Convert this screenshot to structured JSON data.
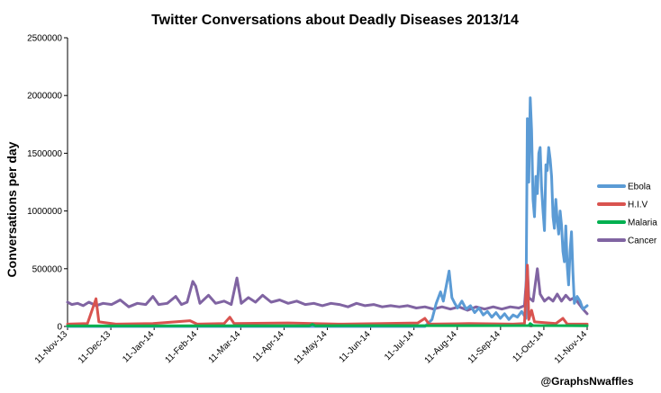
{
  "chart_data": {
    "type": "line",
    "title": "Twitter Conversations about Deadly Diseases 2013/14",
    "xlabel": "",
    "ylabel": "Conversations per day",
    "ylim": [
      0,
      2500000
    ],
    "yticks": [
      "0",
      "500000",
      "1000000",
      "1500000",
      "2000000",
      "2500000"
    ],
    "xlim": [
      "2013-11-11",
      "2014-11-11"
    ],
    "xticks": [
      "11-Nov-13",
      "11-Dec-13",
      "11-Jan-14",
      "11-Feb-14",
      "11-Mar-14",
      "11-Apr-14",
      "11-May-14",
      "11-Jun-14",
      "11-Jul-14",
      "11-Aug-14",
      "11-Sep-14",
      "11-Oct-14",
      "11-Nov-14"
    ],
    "grid": false,
    "legend": "right",
    "credit": "@GraphsNwaffles",
    "series": [
      {
        "name": "Ebola",
        "color": "#5b9bd5",
        "points": [
          [
            "2013-11-11",
            0
          ],
          [
            "2014-07-20",
            0
          ],
          [
            "2014-07-25",
            60000
          ],
          [
            "2014-07-28",
            200000
          ],
          [
            "2014-07-31",
            300000
          ],
          [
            "2014-08-02",
            220000
          ],
          [
            "2014-08-04",
            350000
          ],
          [
            "2014-08-06",
            480000
          ],
          [
            "2014-08-08",
            250000
          ],
          [
            "2014-08-10",
            200000
          ],
          [
            "2014-08-12",
            160000
          ],
          [
            "2014-08-15",
            220000
          ],
          [
            "2014-08-18",
            150000
          ],
          [
            "2014-08-21",
            180000
          ],
          [
            "2014-08-24",
            120000
          ],
          [
            "2014-08-27",
            160000
          ],
          [
            "2014-08-30",
            100000
          ],
          [
            "2014-09-02",
            130000
          ],
          [
            "2014-09-05",
            80000
          ],
          [
            "2014-09-08",
            120000
          ],
          [
            "2014-09-11",
            70000
          ],
          [
            "2014-09-14",
            110000
          ],
          [
            "2014-09-17",
            60000
          ],
          [
            "2014-09-20",
            100000
          ],
          [
            "2014-09-23",
            80000
          ],
          [
            "2014-09-26",
            130000
          ],
          [
            "2014-09-29",
            70000
          ],
          [
            "2014-09-30",
            1800000
          ],
          [
            "2014-10-01",
            1250000
          ],
          [
            "2014-10-02",
            1980000
          ],
          [
            "2014-10-03",
            1700000
          ],
          [
            "2014-10-04",
            1100000
          ],
          [
            "2014-10-05",
            950000
          ],
          [
            "2014-10-06",
            1300000
          ],
          [
            "2014-10-07",
            1150000
          ],
          [
            "2014-10-08",
            1500000
          ],
          [
            "2014-10-09",
            1550000
          ],
          [
            "2014-10-10",
            1200000
          ],
          [
            "2014-10-11",
            1000000
          ],
          [
            "2014-10-12",
            830000
          ],
          [
            "2014-10-13",
            1400000
          ],
          [
            "2014-10-14",
            1350000
          ],
          [
            "2014-10-15",
            1550000
          ],
          [
            "2014-10-16",
            1450000
          ],
          [
            "2014-10-17",
            1300000
          ],
          [
            "2014-10-18",
            950000
          ],
          [
            "2014-10-19",
            850000
          ],
          [
            "2014-10-20",
            1100000
          ],
          [
            "2014-10-21",
            920000
          ],
          [
            "2014-10-22",
            800000
          ],
          [
            "2014-10-23",
            1000000
          ],
          [
            "2014-10-24",
            880000
          ],
          [
            "2014-10-25",
            650000
          ],
          [
            "2014-10-26",
            560000
          ],
          [
            "2014-10-27",
            870000
          ],
          [
            "2014-10-28",
            520000
          ],
          [
            "2014-10-29",
            360000
          ],
          [
            "2014-10-30",
            650000
          ],
          [
            "2014-10-31",
            820000
          ],
          [
            "2014-11-01",
            470000
          ],
          [
            "2014-11-02",
            200000
          ],
          [
            "2014-11-04",
            260000
          ],
          [
            "2014-11-06",
            220000
          ],
          [
            "2014-11-08",
            150000
          ],
          [
            "2014-11-11",
            180000
          ]
        ]
      },
      {
        "name": "H.I.V",
        "color": "#d9534f",
        "points": [
          [
            "2013-11-11",
            20000
          ],
          [
            "2013-11-25",
            25000
          ],
          [
            "2013-12-01",
            240000
          ],
          [
            "2013-12-03",
            40000
          ],
          [
            "2013-12-15",
            20000
          ],
          [
            "2014-01-10",
            25000
          ],
          [
            "2014-02-05",
            50000
          ],
          [
            "2014-02-10",
            20000
          ],
          [
            "2014-03-01",
            25000
          ],
          [
            "2014-03-05",
            80000
          ],
          [
            "2014-03-08",
            25000
          ],
          [
            "2014-04-15",
            30000
          ],
          [
            "2014-05-20",
            20000
          ],
          [
            "2014-06-20",
            25000
          ],
          [
            "2014-07-15",
            30000
          ],
          [
            "2014-07-20",
            70000
          ],
          [
            "2014-07-23",
            20000
          ],
          [
            "2014-08-20",
            25000
          ],
          [
            "2014-09-20",
            20000
          ],
          [
            "2014-09-28",
            25000
          ],
          [
            "2014-09-30",
            530000
          ],
          [
            "2014-10-01",
            60000
          ],
          [
            "2014-10-03",
            140000
          ],
          [
            "2014-10-05",
            40000
          ],
          [
            "2014-10-20",
            25000
          ],
          [
            "2014-10-25",
            70000
          ],
          [
            "2014-10-28",
            20000
          ],
          [
            "2014-11-11",
            20000
          ]
        ]
      },
      {
        "name": "Malaria",
        "color": "#00b050",
        "points": [
          [
            "2013-11-11",
            5000
          ],
          [
            "2014-04-30",
            6000
          ],
          [
            "2014-05-02",
            18000
          ],
          [
            "2014-05-04",
            6000
          ],
          [
            "2014-10-01",
            8000
          ],
          [
            "2014-10-02",
            25000
          ],
          [
            "2014-10-04",
            8000
          ],
          [
            "2014-11-11",
            6000
          ]
        ]
      },
      {
        "name": "Cancer",
        "color": "#8064a2",
        "points": [
          [
            "2013-11-11",
            210000
          ],
          [
            "2013-11-14",
            190000
          ],
          [
            "2013-11-18",
            200000
          ],
          [
            "2013-11-22",
            180000
          ],
          [
            "2013-11-26",
            210000
          ],
          [
            "2013-12-01",
            180000
          ],
          [
            "2013-12-06",
            200000
          ],
          [
            "2013-12-12",
            190000
          ],
          [
            "2013-12-18",
            230000
          ],
          [
            "2013-12-24",
            170000
          ],
          [
            "2013-12-30",
            200000
          ],
          [
            "2014-01-05",
            190000
          ],
          [
            "2014-01-10",
            260000
          ],
          [
            "2014-01-14",
            190000
          ],
          [
            "2014-01-20",
            200000
          ],
          [
            "2014-01-26",
            260000
          ],
          [
            "2014-01-30",
            190000
          ],
          [
            "2014-02-03",
            210000
          ],
          [
            "2014-02-07",
            390000
          ],
          [
            "2014-02-09",
            350000
          ],
          [
            "2014-02-12",
            200000
          ],
          [
            "2014-02-18",
            270000
          ],
          [
            "2014-02-23",
            200000
          ],
          [
            "2014-03-01",
            220000
          ],
          [
            "2014-03-06",
            190000
          ],
          [
            "2014-03-10",
            420000
          ],
          [
            "2014-03-13",
            200000
          ],
          [
            "2014-03-18",
            250000
          ],
          [
            "2014-03-23",
            210000
          ],
          [
            "2014-03-28",
            270000
          ],
          [
            "2014-04-03",
            210000
          ],
          [
            "2014-04-09",
            230000
          ],
          [
            "2014-04-15",
            200000
          ],
          [
            "2014-04-21",
            220000
          ],
          [
            "2014-04-27",
            190000
          ],
          [
            "2014-05-03",
            200000
          ],
          [
            "2014-05-09",
            180000
          ],
          [
            "2014-05-15",
            200000
          ],
          [
            "2014-05-21",
            190000
          ],
          [
            "2014-05-27",
            170000
          ],
          [
            "2014-06-02",
            200000
          ],
          [
            "2014-06-08",
            180000
          ],
          [
            "2014-06-14",
            190000
          ],
          [
            "2014-06-20",
            170000
          ],
          [
            "2014-06-26",
            180000
          ],
          [
            "2014-07-02",
            170000
          ],
          [
            "2014-07-08",
            180000
          ],
          [
            "2014-07-14",
            160000
          ],
          [
            "2014-07-20",
            170000
          ],
          [
            "2014-07-26",
            150000
          ],
          [
            "2014-08-01",
            170000
          ],
          [
            "2014-08-07",
            150000
          ],
          [
            "2014-08-13",
            170000
          ],
          [
            "2014-08-19",
            140000
          ],
          [
            "2014-08-25",
            170000
          ],
          [
            "2014-08-31",
            150000
          ],
          [
            "2014-09-06",
            170000
          ],
          [
            "2014-09-12",
            150000
          ],
          [
            "2014-09-18",
            170000
          ],
          [
            "2014-09-24",
            160000
          ],
          [
            "2014-09-28",
            180000
          ],
          [
            "2014-09-30",
            520000
          ],
          [
            "2014-10-01",
            250000
          ],
          [
            "2014-10-04",
            220000
          ],
          [
            "2014-10-07",
            500000
          ],
          [
            "2014-10-09",
            280000
          ],
          [
            "2014-10-12",
            220000
          ],
          [
            "2014-10-15",
            250000
          ],
          [
            "2014-10-18",
            220000
          ],
          [
            "2014-10-21",
            280000
          ],
          [
            "2014-10-24",
            220000
          ],
          [
            "2014-10-27",
            270000
          ],
          [
            "2014-10-30",
            230000
          ],
          [
            "2014-11-02",
            250000
          ],
          [
            "2014-11-05",
            200000
          ],
          [
            "2014-11-08",
            150000
          ],
          [
            "2014-11-11",
            110000
          ]
        ]
      }
    ]
  }
}
